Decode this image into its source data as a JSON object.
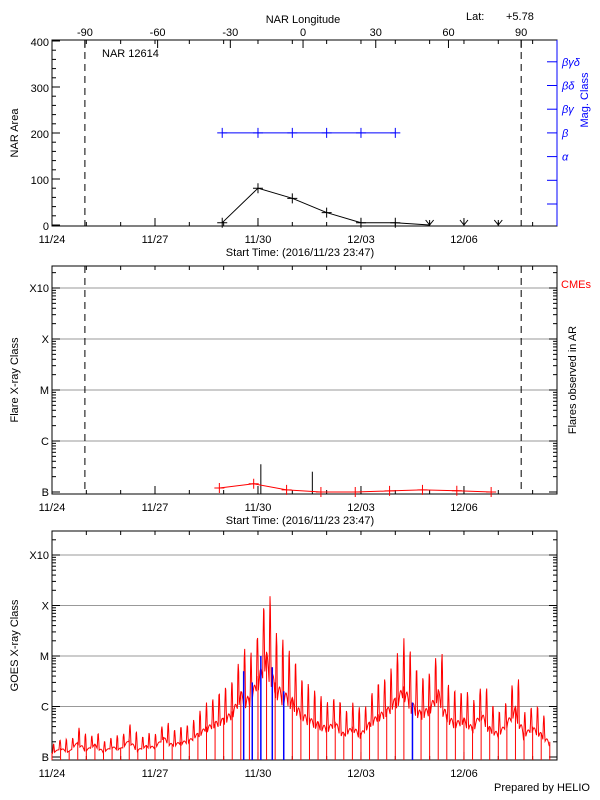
{
  "header": {
    "region_title": "NAR 12614",
    "lat_label": "Lat:",
    "lat_value": "+5.78",
    "top_axis_label": "NAR Longitude",
    "footer": "Prepared by HELIO"
  },
  "colors": {
    "mag_class": "#0000ff",
    "cme": "#ff0000",
    "goes_long": "#ff0000",
    "goes_short": "#0000ff",
    "flare": "#000000",
    "grid": "#999999"
  },
  "chart_data": [
    {
      "type": "line",
      "ylabel": "NAR Area",
      "xlabel": "Start Time: (2016/11/23 23:47)",
      "x_tick_labels": [
        "11/24",
        "11/27",
        "11/30",
        "12/03",
        "12/06"
      ],
      "y_tick_labels": [
        "0",
        "100",
        "200",
        "300",
        "400"
      ],
      "ylim": [
        0,
        400
      ],
      "top_axis": {
        "label": "NAR Longitude",
        "ticks": [
          "-90",
          "-60",
          "-30",
          "0",
          "30",
          "60",
          "90"
        ]
      },
      "right_axis": {
        "label": "Mag. Class",
        "ticks": [
          "α",
          "β",
          "βγ",
          "βδ",
          "βγδ"
        ]
      },
      "limb_crossings": [
        "2016-11-24T23:00",
        "2016-12-07T16:00"
      ],
      "area_series": [
        {
          "x": "2016-11-28T23:00",
          "y": 5
        },
        {
          "x": "2016-11-30T00:00",
          "y": 80
        },
        {
          "x": "2016-12-01T00:00",
          "y": 58
        },
        {
          "x": "2016-12-02T00:00",
          "y": 27
        },
        {
          "x": "2016-12-03T00:00",
          "y": 5
        },
        {
          "x": "2016-12-04T00:00",
          "y": 5
        },
        {
          "x": "2016-12-05T00:00",
          "y": 0,
          "beyond_limb": true
        },
        {
          "x": "2016-12-06T00:00",
          "y": 0,
          "beyond_limb": true
        },
        {
          "x": "2016-12-07T00:00",
          "y": 0,
          "beyond_limb": true
        }
      ],
      "mag_class_series": [
        {
          "x": "2016-11-28T23:00",
          "class": "β"
        },
        {
          "x": "2016-11-30T00:00",
          "class": "β"
        },
        {
          "x": "2016-12-01T00:00",
          "class": "β"
        },
        {
          "x": "2016-12-02T00:00",
          "class": "β"
        },
        {
          "x": "2016-12-03T00:00",
          "class": "β"
        },
        {
          "x": "2016-12-04T00:00",
          "class": "β"
        }
      ]
    },
    {
      "type": "line",
      "ylabel": "Flare X-ray Class",
      "right_label": "Flares observed in AR",
      "legend": "CMEs",
      "xlabel": "Start Time: (2016/11/23 23:47)",
      "x_tick_labels": [
        "11/24",
        "11/27",
        "11/30",
        "12/03",
        "12/06"
      ],
      "y_tick_labels": [
        "B",
        "C",
        "M",
        "X",
        "X10"
      ],
      "y_scale": "log",
      "ylim": [
        1e-07,
        0.0015
      ],
      "grid": true,
      "limb_crossings": [
        "2016-11-24T23:00",
        "2016-12-07T16:00"
      ],
      "flares": [
        {
          "x": "2016-11-30T02:00",
          "flux": 3.5e-07
        },
        {
          "x": "2016-12-01T14:00",
          "flux": 2.5e-07
        }
      ],
      "cmes": [
        {
          "x": "2016-11-28T21:00",
          "flux": 1.2e-07
        },
        {
          "x": "2016-11-29T21:00",
          "flux": 1.45e-07
        },
        {
          "x": "2016-11-30T20:00",
          "flux": 1.1e-07
        },
        {
          "x": "2016-12-01T20:00",
          "flux": 1e-07
        },
        {
          "x": "2016-12-02T20:00",
          "flux": 1e-07
        },
        {
          "x": "2016-12-03T20:00",
          "flux": 1.05e-07
        },
        {
          "x": "2016-12-04T19:00",
          "flux": 1.1e-07
        },
        {
          "x": "2016-12-05T19:00",
          "flux": 1.06e-07
        },
        {
          "x": "2016-12-06T19:00",
          "flux": 1e-07
        }
      ]
    },
    {
      "type": "line",
      "ylabel": "GOES X-ray Class",
      "x_tick_labels": [
        "11/24",
        "11/27",
        "11/30",
        "12/03",
        "12/06"
      ],
      "y_tick_labels": [
        "B",
        "C",
        "M",
        "X",
        "X10"
      ],
      "y_scale": "log",
      "ylim": [
        1e-07,
        0.0015
      ],
      "grid": true,
      "long_channel": [
        [
          "2016-11-24T00:00",
          1.2e-07
        ],
        [
          "2016-11-24T06:00",
          1.5e-07
        ],
        [
          "2016-11-24T12:00",
          1.3e-07
        ],
        [
          "2016-11-24T18:00",
          2e-07
        ],
        [
          "2016-11-25T00:00",
          1.4e-07
        ],
        [
          "2016-11-25T06:00",
          1.8e-07
        ],
        [
          "2016-11-25T12:00",
          1.3e-07
        ],
        [
          "2016-11-25T18:00",
          1.6e-07
        ],
        [
          "2016-11-26T00:00",
          1.5e-07
        ],
        [
          "2016-11-26T06:00",
          2.2e-07
        ],
        [
          "2016-11-26T12:00",
          1.4e-07
        ],
        [
          "2016-11-26T18:00",
          1.7e-07
        ],
        [
          "2016-11-27T00:00",
          1.6e-07
        ],
        [
          "2016-11-27T06:00",
          2.5e-07
        ],
        [
          "2016-11-27T12:00",
          1.8e-07
        ],
        [
          "2016-11-27T18:00",
          2e-07
        ],
        [
          "2016-11-28T00:00",
          2.2e-07
        ],
        [
          "2016-11-28T06:00",
          3e-07
        ],
        [
          "2016-11-28T12:00",
          4e-07
        ],
        [
          "2016-11-28T18:00",
          5e-07
        ],
        [
          "2016-11-29T00:00",
          6e-07
        ],
        [
          "2016-11-29T06:00",
          8e-07
        ],
        [
          "2016-11-29T12:00",
          2e-06
        ],
        [
          "2016-11-29T18:00",
          1.5e-06
        ],
        [
          "2016-11-30T00:00",
          4e-06
        ],
        [
          "2016-11-30T06:00",
          1.2e-05
        ],
        [
          "2016-11-30T12:00",
          3e-06
        ],
        [
          "2016-11-30T18:00",
          2e-06
        ],
        [
          "2016-12-01T00:00",
          1.5e-06
        ],
        [
          "2016-12-01T06:00",
          8e-07
        ],
        [
          "2016-12-01T12:00",
          6e-07
        ],
        [
          "2016-12-01T18:00",
          5e-07
        ],
        [
          "2016-12-02T00:00",
          4e-07
        ],
        [
          "2016-12-02T06:00",
          5e-07
        ],
        [
          "2016-12-02T12:00",
          3e-07
        ],
        [
          "2016-12-02T18:00",
          4e-07
        ],
        [
          "2016-12-03T00:00",
          3e-07
        ],
        [
          "2016-12-03T06:00",
          5e-07
        ],
        [
          "2016-12-03T12:00",
          7e-07
        ],
        [
          "2016-12-03T18:00",
          9e-07
        ],
        [
          "2016-12-04T00:00",
          1.5e-06
        ],
        [
          "2016-12-04T06:00",
          2.5e-06
        ],
        [
          "2016-12-04T12:00",
          1.2e-06
        ],
        [
          "2016-12-04T18:00",
          8e-07
        ],
        [
          "2016-12-05T00:00",
          1e-06
        ],
        [
          "2016-12-05T06:00",
          2.2e-06
        ],
        [
          "2016-12-05T12:00",
          7e-07
        ],
        [
          "2016-12-05T18:00",
          5e-07
        ],
        [
          "2016-12-06T00:00",
          6e-07
        ],
        [
          "2016-12-06T06:00",
          4e-07
        ],
        [
          "2016-12-06T12:00",
          8e-07
        ],
        [
          "2016-12-06T18:00",
          4e-07
        ],
        [
          "2016-12-07T00:00",
          3e-07
        ],
        [
          "2016-12-07T06:00",
          5e-07
        ],
        [
          "2016-12-07T12:00",
          1e-06
        ],
        [
          "2016-12-07T18:00",
          3e-07
        ],
        [
          "2016-12-08T00:00",
          4e-07
        ],
        [
          "2016-12-08T06:00",
          3e-07
        ],
        [
          "2016-12-08T12:00",
          2e-07
        ]
      ],
      "short_channel": [
        [
          "2016-11-29T14:00",
          5e-06
        ],
        [
          "2016-11-29T20:00",
          3e-06
        ],
        [
          "2016-11-30T02:00",
          1e-05
        ],
        [
          "2016-11-30T10:00",
          6e-06
        ],
        [
          "2016-11-30T18:00",
          2e-06
        ],
        [
          "2016-12-04T12:00",
          1.2e-06
        ]
      ]
    }
  ]
}
